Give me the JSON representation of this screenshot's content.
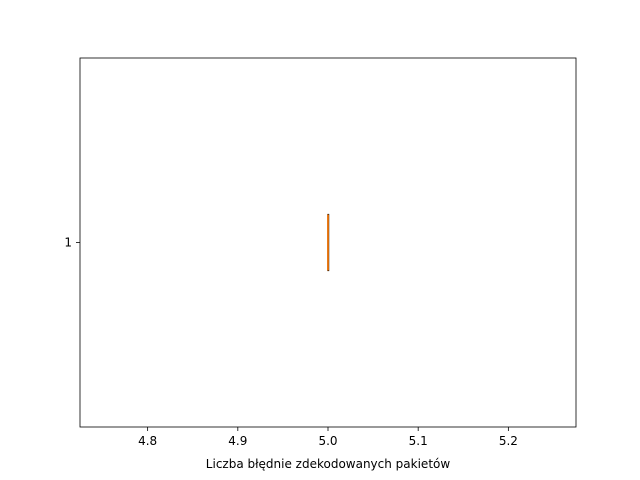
{
  "chart_data": {
    "type": "boxplot",
    "orientation": "horizontal",
    "title": "",
    "xlabel": "Liczba błędnie zdekodowanych pakietów",
    "ylabel": "",
    "xlim": [
      4.725,
      5.275
    ],
    "xticks": [
      4.8,
      4.9,
      5.0,
      5.1,
      5.2
    ],
    "xtick_labels": [
      "4.8",
      "4.9",
      "5.0",
      "5.1",
      "5.2"
    ],
    "yticks": [
      1
    ],
    "ytick_labels": [
      "1"
    ],
    "grid": false,
    "series": [
      {
        "position": 1,
        "min": 5.0,
        "q1": 5.0,
        "median": 5.0,
        "q3": 5.0,
        "max": 5.0,
        "box_color": "#000000",
        "median_color": "#ff7f0e"
      }
    ]
  }
}
